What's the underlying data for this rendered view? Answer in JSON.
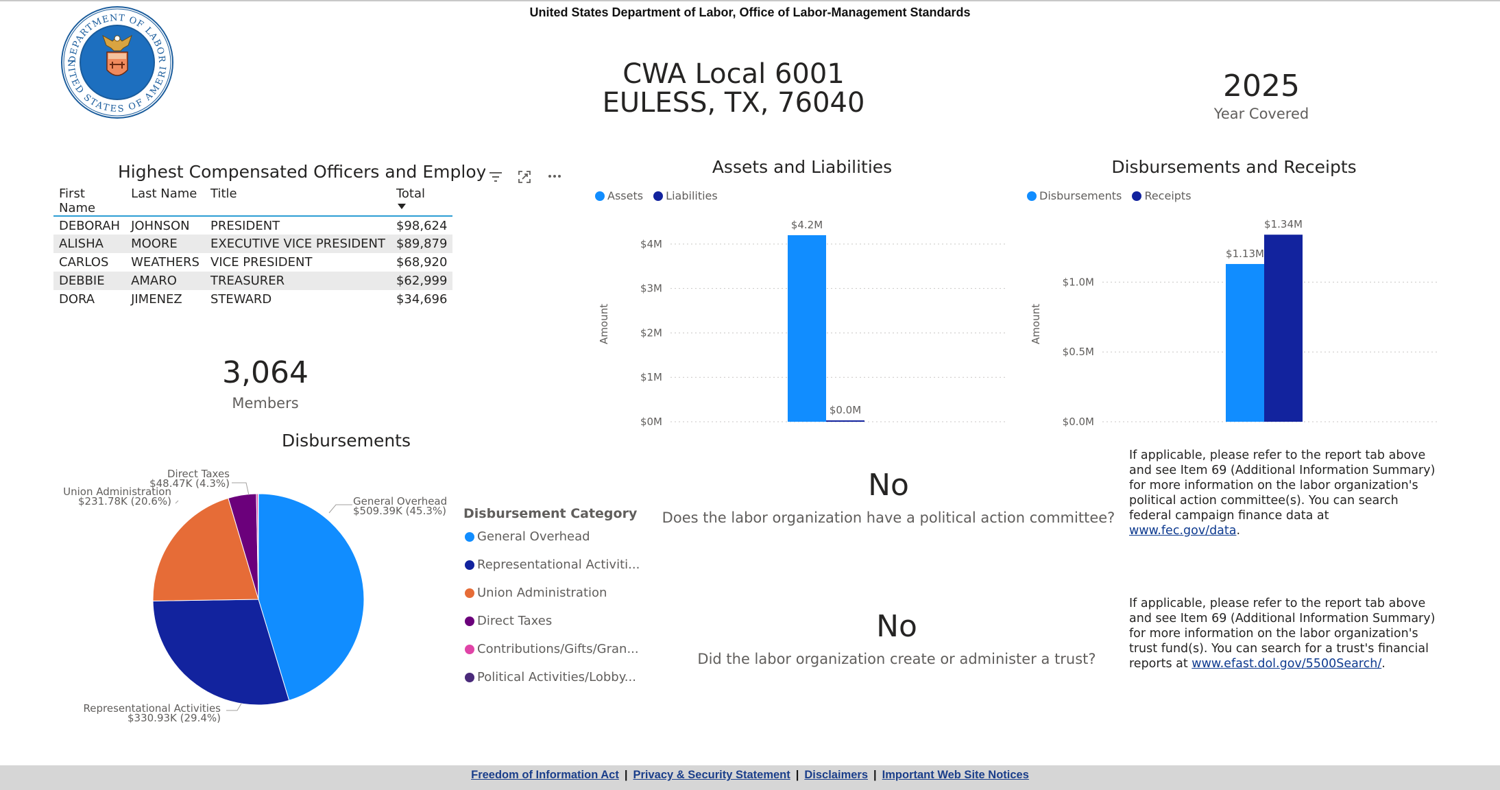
{
  "header": {
    "title": "United States Department of Labor, Office of Labor-Management Standards"
  },
  "seal": {
    "top_text": "DEPARTMENT OF LABOR",
    "bottom_text": "UNITED STATES OF AMERICA"
  },
  "org": {
    "name": "CWA Local 6001",
    "location": "EULESS, TX, 76040"
  },
  "year": {
    "value": "2025",
    "label": "Year Covered"
  },
  "officers_table": {
    "title": "Highest Compensated Officers and Employees",
    "columns": [
      "First Name",
      "Last Name",
      "Title",
      "Total"
    ],
    "rows": [
      [
        "DEBORAH",
        "JOHNSON",
        "PRESIDENT",
        "$98,624"
      ],
      [
        "ALISHA",
        "MOORE",
        "EXECUTIVE VICE PRESIDENT",
        "$89,879"
      ],
      [
        "CARLOS",
        "WEATHERS",
        "VICE PRESIDENT",
        "$68,920"
      ],
      [
        "DEBBIE",
        "AMARO",
        "TREASURER",
        "$62,999"
      ],
      [
        "DORA",
        "JIMENEZ",
        "STEWARD",
        "$34,696"
      ]
    ],
    "icons": [
      "filter-icon",
      "focus-mode-icon",
      "more-options-icon"
    ]
  },
  "members": {
    "value": "3,064",
    "label": "Members"
  },
  "colors": {
    "general_overhead": "#118dff",
    "representational": "#12239e",
    "union_admin": "#e66c37",
    "direct_taxes": "#6b007b",
    "contributions": "#e044a7",
    "political": "#4a2a7a",
    "assets": "#118dff",
    "liabilities": "#12239e",
    "disbursements": "#118dff",
    "receipts": "#12239e"
  },
  "chart_data": [
    {
      "type": "bar",
      "title": "Assets and Liabilities",
      "ylabel": "Amount",
      "categories": [
        ""
      ],
      "series": [
        {
          "name": "Assets",
          "values": [
            4.2
          ],
          "label": "$4.2M"
        },
        {
          "name": "Liabilities",
          "values": [
            0.03
          ],
          "label": "$0.0M"
        }
      ],
      "yticks": [
        "$0M",
        "$1M",
        "$2M",
        "$3M",
        "$4M"
      ],
      "ylim": [
        0,
        4.4
      ],
      "grid": true,
      "legend": "top-left"
    },
    {
      "type": "bar",
      "title": "Disbursements and Receipts",
      "ylabel": "Amount",
      "categories": [
        ""
      ],
      "series": [
        {
          "name": "Disbursements",
          "values": [
            1.13
          ],
          "label": "$1.13M"
        },
        {
          "name": "Receipts",
          "values": [
            1.34
          ],
          "label": "$1.34M"
        }
      ],
      "yticks": [
        "$0.0M",
        "$0.5M",
        "$1.0M"
      ],
      "ylim": [
        0,
        1.4
      ],
      "grid": true,
      "legend": "top-left"
    },
    {
      "type": "pie",
      "title": "Disbursements",
      "legend_title": "Disbursement Category",
      "slices": [
        {
          "name": "General Overhead",
          "legend_label": "General Overhead",
          "value": 509.39,
          "label": "$509.39K (45.3%)",
          "color_key": "general_overhead"
        },
        {
          "name": "Representational Activities",
          "legend_label": "Representational Activiti...",
          "value": 330.93,
          "label": "$330.93K (29.4%)",
          "color_key": "representational"
        },
        {
          "name": "Union Administration",
          "legend_label": "Union Administration",
          "value": 231.78,
          "label": "$231.78K (20.6%)",
          "color_key": "union_admin"
        },
        {
          "name": "Direct Taxes",
          "legend_label": "Direct Taxes",
          "value": 48.47,
          "label": "$48.47K (4.3%)",
          "color_key": "direct_taxes"
        },
        {
          "name": "Contributions/Gifts/Grants",
          "legend_label": "Contributions/Gifts/Gran...",
          "value": 3.0,
          "label": "",
          "color_key": "contributions"
        },
        {
          "name": "Political Activities/Lobbying",
          "legend_label": "Political Activities/Lobby...",
          "value": 0.5,
          "label": "",
          "color_key": "political"
        }
      ],
      "legend": "right"
    }
  ],
  "pac": {
    "value": "No",
    "question": "Does the labor organization have a political action committee?"
  },
  "trust": {
    "value": "No",
    "question": "Did the labor organization create or administer a trust?"
  },
  "pac_info": {
    "lines": [
      "If applicable, please refer to the report tab above",
      "and see Item 69 (Additional Information Summary)",
      "for more information on the labor organization's",
      "political action committee(s). You can search",
      "federal campaign finance data at"
    ],
    "link": "www.fec.gov/data",
    "link_suffix": "."
  },
  "trust_info": {
    "lines": [
      "If applicable, please refer to the report tab above",
      "and see Item 69 (Additional Information Summary)",
      "for more information on the labor organization's",
      "trust fund(s). You can search for a trust's financial"
    ],
    "last_prefix": "reports at ",
    "link": "www.efast.dol.gov/5500Search/",
    "link_suffix": "."
  },
  "footer": {
    "links": [
      "Freedom of Information Act",
      "Privacy & Security Statement",
      "Disclaimers",
      "Important Web Site Notices"
    ],
    "separator": "|"
  }
}
